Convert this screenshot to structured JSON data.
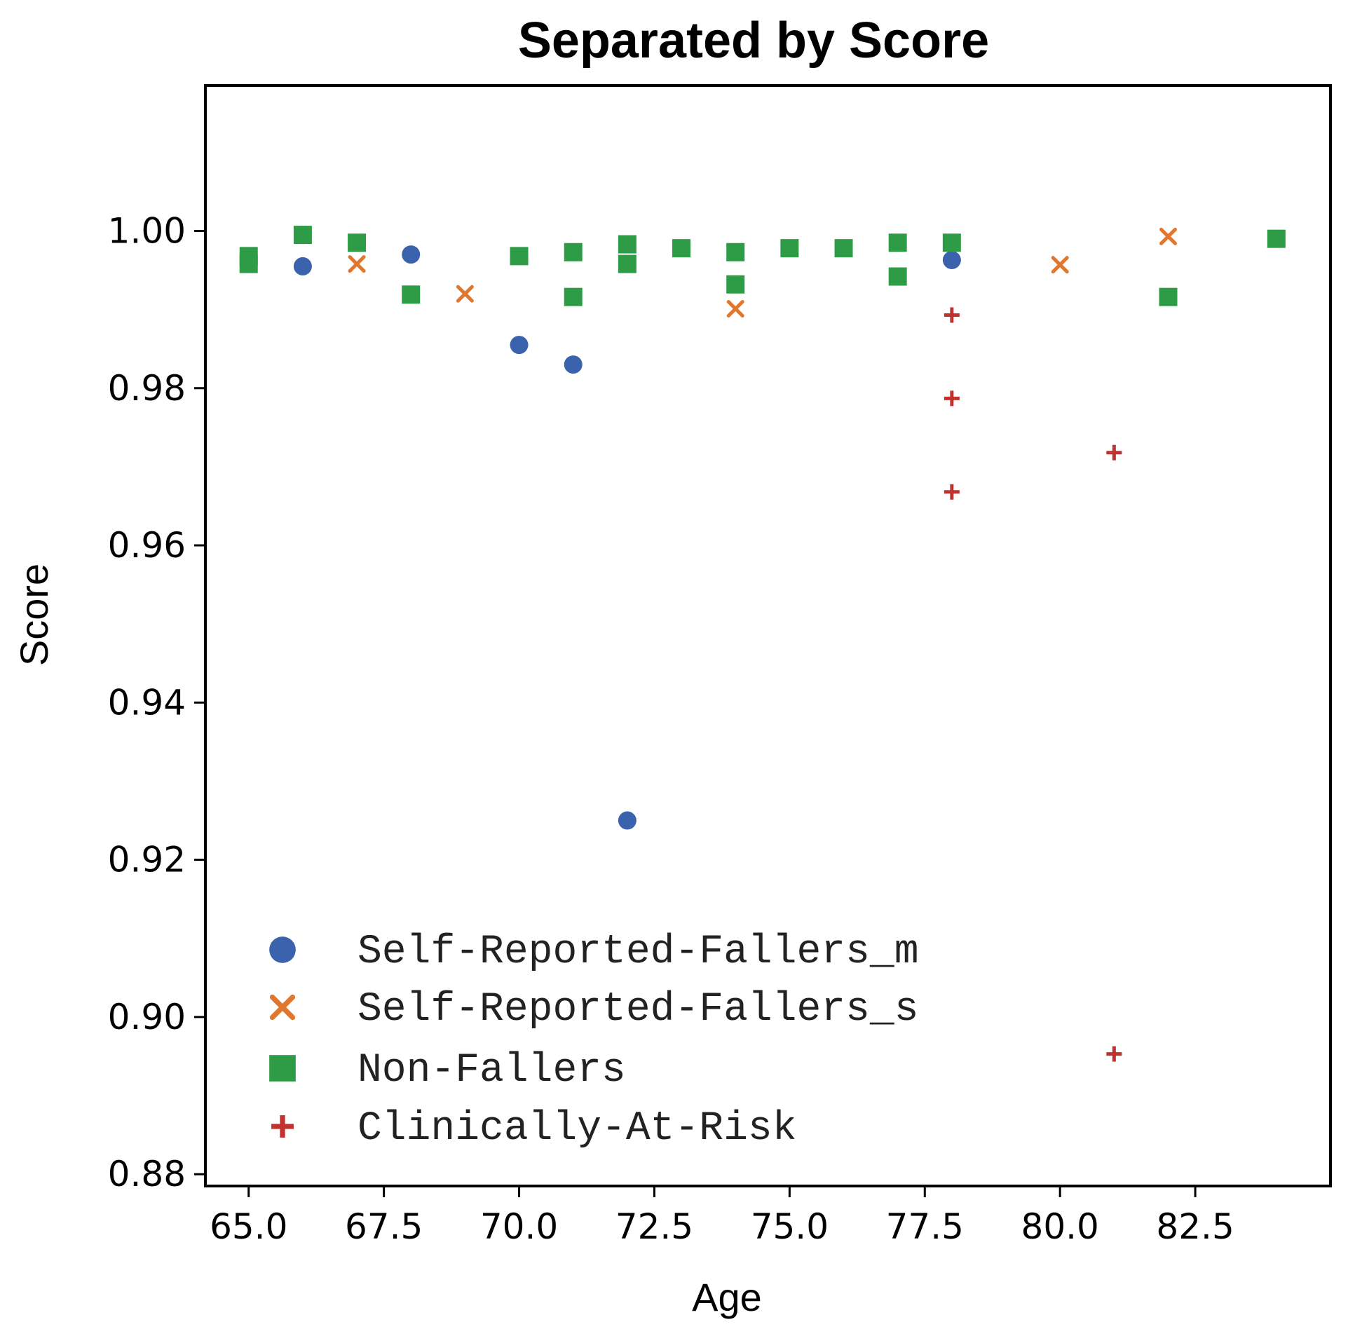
{
  "chart_data": {
    "type": "scatter",
    "title": "Separated by Score",
    "xlabel": "Age",
    "ylabel": "Score",
    "xlim": [
      64.2,
      85.0
    ],
    "ylim": [
      0.8785,
      1.0185
    ],
    "xticks": [
      "65.0",
      "67.5",
      "70.0",
      "72.5",
      "75.0",
      "77.5",
      "80.0",
      "82.5"
    ],
    "yticks": [
      "0.88",
      "0.90",
      "0.92",
      "0.94",
      "0.96",
      "0.98",
      "1.00"
    ],
    "grid": false,
    "legend_position": "lower-left",
    "series": [
      {
        "name": "Self-Reported-Fallers_m",
        "marker": "circle",
        "color": "#3a62ad",
        "x": [
          66,
          68,
          70,
          71,
          72,
          78
        ],
        "y": [
          0.9955,
          0.997,
          0.9855,
          0.983,
          0.925,
          0.9963
        ]
      },
      {
        "name": "Self-Reported-Fallers_s",
        "marker": "x",
        "color": "#e0772f",
        "x": [
          67,
          69,
          74,
          80,
          82
        ],
        "y": [
          0.9958,
          0.992,
          0.9901,
          0.9957,
          0.9993
        ]
      },
      {
        "name": "Non-Fallers",
        "marker": "square",
        "color": "#2e9b46",
        "x": [
          65,
          65,
          66,
          67,
          68,
          70,
          71,
          71,
          72,
          72,
          73,
          74,
          74,
          75,
          76,
          77,
          77,
          78,
          82,
          84
        ],
        "y": [
          0.9958,
          0.9968,
          0.9995,
          0.9985,
          0.9919,
          0.9968,
          0.9973,
          0.9916,
          0.9958,
          0.9983,
          0.9978,
          0.9973,
          0.9932,
          0.9978,
          0.9978,
          0.9985,
          0.9942,
          0.9985,
          0.9916,
          0.999
        ]
      },
      {
        "name": "Clinically-At-Risk",
        "marker": "plus",
        "color": "#c3312f",
        "x": [
          78,
          78,
          78,
          81,
          81
        ],
        "y": [
          0.9893,
          0.9787,
          0.9668,
          0.9718,
          0.8953
        ]
      }
    ]
  }
}
